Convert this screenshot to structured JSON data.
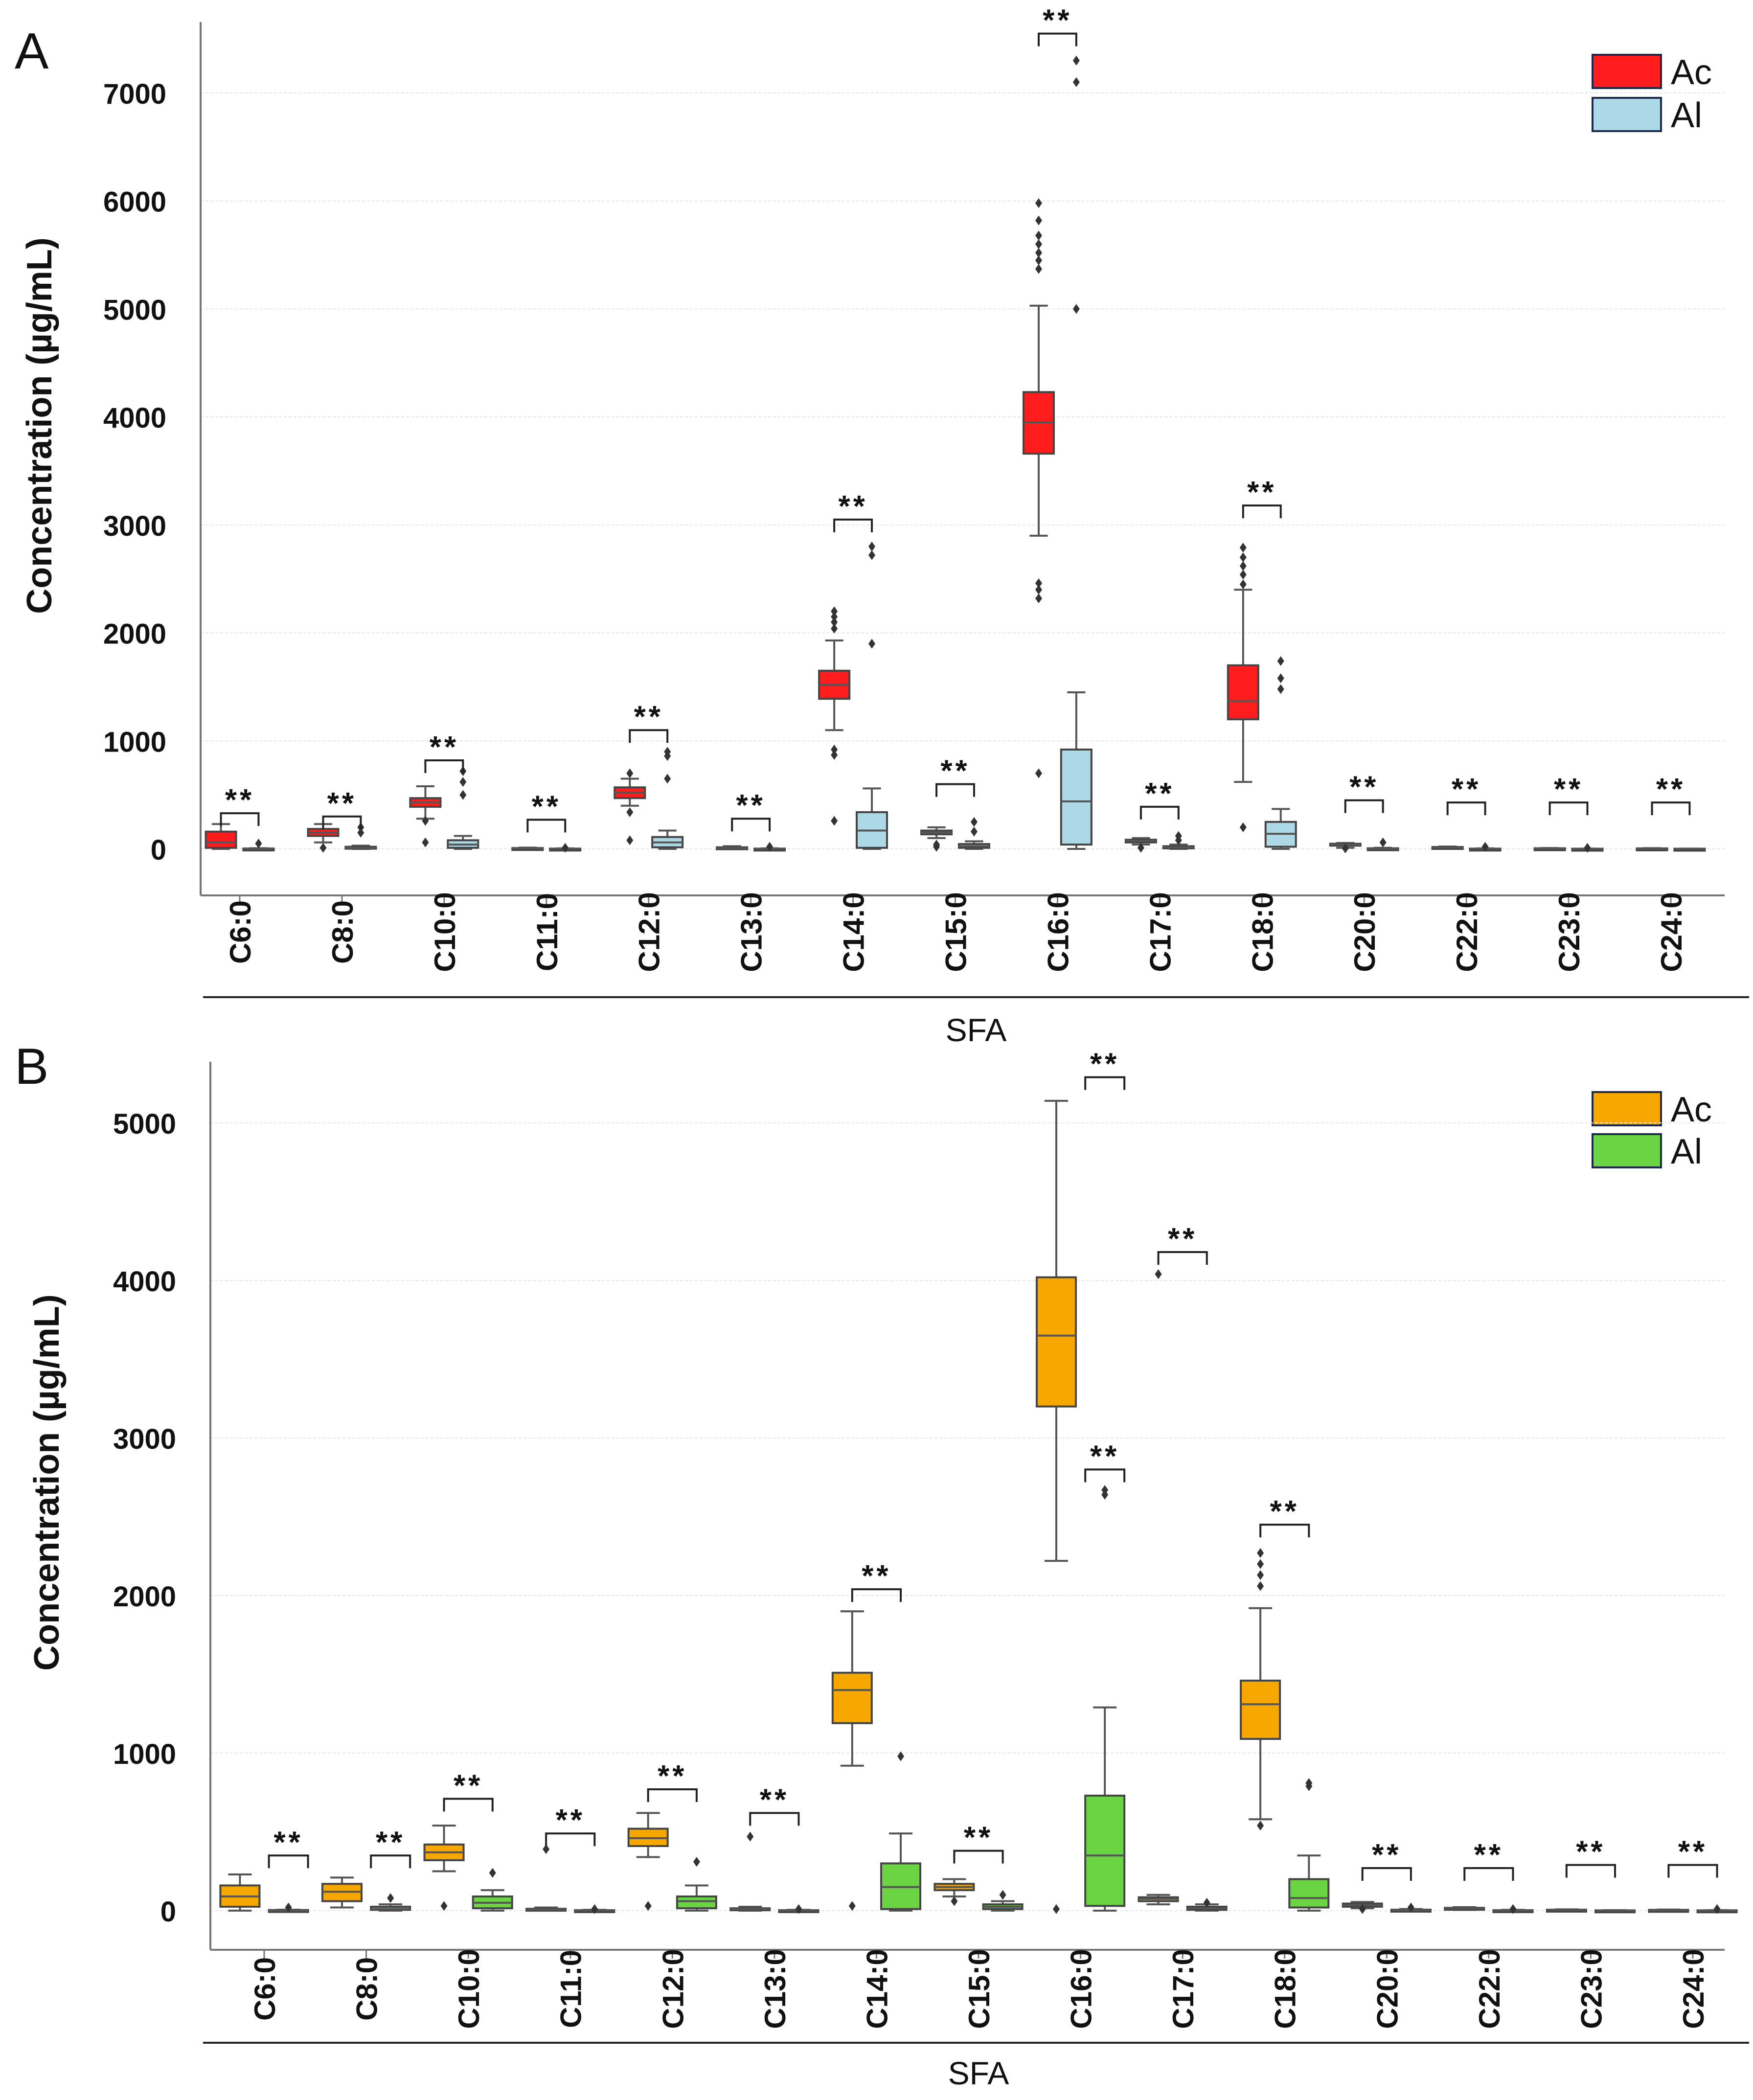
{
  "x_label": "SFA",
  "y_label": "Concentration (µg/mL)",
  "significance": "**",
  "chart_data": [
    {
      "panel": "A",
      "type": "boxplot",
      "title": "",
      "xlabel": "SFA",
      "ylabel": "Concentration (µg/mL)",
      "ylim": [
        -450,
        7800
      ],
      "yticks": [
        0,
        1000,
        2000,
        3000,
        4000,
        5000,
        6000,
        7000
      ],
      "grid": true,
      "legend_position": "top-right",
      "colors": {
        "Ac": "#ff1c1c",
        "Al": "#add8e6"
      },
      "categories": [
        "C6:0",
        "C8:0",
        "C10:0",
        "C11:0",
        "C12:0",
        "C13:0",
        "C14:0",
        "C15:0",
        "C16:0",
        "C17:0",
        "C18:0",
        "C20:0",
        "C22:0",
        "C23:0",
        "C24:0"
      ],
      "series": [
        {
          "name": "Ac",
          "boxes": [
            {
              "wlo": 0,
              "q1": 10,
              "med": 60,
              "q3": 160,
              "whi": 230,
              "fliers": []
            },
            {
              "wlo": 60,
              "q1": 120,
              "med": 150,
              "q3": 185,
              "whi": 230,
              "fliers": [
                10
              ]
            },
            {
              "wlo": 280,
              "q1": 390,
              "med": 430,
              "q3": 470,
              "whi": 580,
              "fliers": [
                60,
                260
              ]
            },
            {
              "wlo": 0,
              "q1": 2,
              "med": 5,
              "q3": 8,
              "whi": 12,
              "fliers": []
            },
            {
              "wlo": 400,
              "q1": 470,
              "med": 520,
              "q3": 570,
              "whi": 650,
              "fliers": [
                80,
                340,
                700
              ]
            },
            {
              "wlo": 0,
              "q1": 3,
              "med": 8,
              "q3": 15,
              "whi": 25,
              "fliers": []
            },
            {
              "wlo": 1100,
              "q1": 1390,
              "med": 1520,
              "q3": 1650,
              "whi": 1930,
              "fliers": [
                260,
                870,
                920,
                2040,
                2100,
                2150,
                2200
              ]
            },
            {
              "wlo": 100,
              "q1": 135,
              "med": 150,
              "q3": 170,
              "whi": 200,
              "fliers": [
                20,
                40
              ]
            },
            {
              "wlo": 2900,
              "q1": 3660,
              "med": 3950,
              "q3": 4230,
              "whi": 5030,
              "fliers": [
                700,
                2320,
                2400,
                2460,
                5370,
                5450,
                5520,
                5600,
                5680,
                5820,
                5980
              ]
            },
            {
              "wlo": 40,
              "q1": 60,
              "med": 75,
              "q3": 85,
              "whi": 100,
              "fliers": [
                10
              ]
            },
            {
              "wlo": 620,
              "q1": 1200,
              "med": 1370,
              "q3": 1700,
              "whi": 2400,
              "fliers": [
                200,
                2450,
                2540,
                2620,
                2700,
                2790
              ]
            },
            {
              "wlo": 10,
              "q1": 30,
              "med": 40,
              "q3": 48,
              "whi": 55,
              "fliers": [
                5
              ]
            },
            {
              "wlo": 2,
              "q1": 10,
              "med": 15,
              "q3": 18,
              "whi": 22,
              "fliers": []
            },
            {
              "wlo": 0,
              "q1": 2,
              "med": 4,
              "q3": 6,
              "whi": 8,
              "fliers": []
            },
            {
              "wlo": 0,
              "q1": 2,
              "med": 3,
              "q3": 5,
              "whi": 7,
              "fliers": []
            }
          ]
        },
        {
          "name": "Al",
          "boxes": [
            {
              "wlo": 0,
              "q1": 1,
              "med": 2,
              "q3": 4,
              "whi": 6,
              "fliers": [
                50
              ]
            },
            {
              "wlo": 0,
              "q1": 5,
              "med": 10,
              "q3": 20,
              "whi": 30,
              "fliers": [
                150,
                200
              ]
            },
            {
              "wlo": 0,
              "q1": 10,
              "med": 40,
              "q3": 80,
              "whi": 120,
              "fliers": [
                500,
                620,
                720
              ]
            },
            {
              "wlo": 0,
              "q1": 1,
              "med": 2,
              "q3": 3,
              "whi": 5,
              "fliers": [
                10
              ]
            },
            {
              "wlo": 0,
              "q1": 15,
              "med": 60,
              "q3": 110,
              "whi": 170,
              "fliers": [
                650,
                860,
                900
              ]
            },
            {
              "wlo": 0,
              "q1": 1,
              "med": 2,
              "q3": 3,
              "whi": 5,
              "fliers": [
                20
              ]
            },
            {
              "wlo": 0,
              "q1": 10,
              "med": 170,
              "q3": 340,
              "whi": 560,
              "fliers": [
                1900,
                2720,
                2800
              ]
            },
            {
              "wlo": 0,
              "q1": 10,
              "med": 25,
              "q3": 45,
              "whi": 70,
              "fliers": [
                160,
                250
              ]
            },
            {
              "wlo": 0,
              "q1": 40,
              "med": 440,
              "q3": 920,
              "whi": 1450,
              "fliers": [
                5000,
                7100,
                7300
              ]
            },
            {
              "wlo": 0,
              "q1": 5,
              "med": 15,
              "q3": 25,
              "whi": 40,
              "fliers": [
                80,
                120
              ]
            },
            {
              "wlo": 0,
              "q1": 20,
              "med": 140,
              "q3": 250,
              "whi": 370,
              "fliers": [
                1480,
                1580,
                1740
              ]
            },
            {
              "wlo": 0,
              "q1": 1,
              "med": 3,
              "q3": 6,
              "whi": 10,
              "fliers": [
                60
              ]
            },
            {
              "wlo": 0,
              "q1": 1,
              "med": 2,
              "q3": 3,
              "whi": 5,
              "fliers": [
                20
              ]
            },
            {
              "wlo": 0,
              "q1": 1,
              "med": 1,
              "q3": 2,
              "whi": 3,
              "fliers": [
                10
              ]
            },
            {
              "wlo": 0,
              "q1": 1,
              "med": 1,
              "q3": 2,
              "whi": 3,
              "fliers": []
            }
          ]
        }
      ],
      "annotations": [
        {
          "category": "C6:0",
          "text": "**",
          "y": 330
        },
        {
          "category": "C8:0",
          "text": "**",
          "y": 300
        },
        {
          "category": "C10:0",
          "text": "**",
          "y": 820
        },
        {
          "category": "C11:0",
          "text": "**",
          "y": 270
        },
        {
          "category": "C12:0",
          "text": "**",
          "y": 1100
        },
        {
          "category": "C13:0",
          "text": "**",
          "y": 280
        },
        {
          "category": "C14:0",
          "text": "**",
          "y": 3050
        },
        {
          "category": "C15:0",
          "text": "**",
          "y": 600
        },
        {
          "category": "C16:0",
          "text": "**",
          "y": 7550
        },
        {
          "category": "C17:0",
          "text": "**",
          "y": 390
        },
        {
          "category": "C18:0",
          "text": "**",
          "y": 3180
        },
        {
          "category": "C20:0",
          "text": "**",
          "y": 450
        },
        {
          "category": "C22:0",
          "text": "**",
          "y": 430
        },
        {
          "category": "C23:0",
          "text": "**",
          "y": 430
        },
        {
          "category": "C24:0",
          "text": "**",
          "y": 430
        }
      ]
    },
    {
      "panel": "B",
      "type": "boxplot",
      "title": "",
      "xlabel": "SFA",
      "ylabel": "Concentration (µg/mL)",
      "ylim": [
        -250,
        5400
      ],
      "yticks": [
        0,
        1000,
        2000,
        3000,
        4000,
        5000
      ],
      "grid": true,
      "legend_position": "top-right",
      "colors": {
        "Ac": "#f6a800",
        "Al": "#6bd443"
      },
      "categories": [
        "C6:0",
        "C8:0",
        "C10:0",
        "C11:0",
        "C12:0",
        "C13:0",
        "C14:0",
        "C15:0",
        "C16:0",
        "C17:0",
        "C18:0",
        "C20:0",
        "C22:0",
        "C23:0",
        "C24:0"
      ],
      "series": [
        {
          "name": "Ac",
          "boxes": [
            {
              "wlo": 0,
              "q1": 25,
              "med": 90,
              "q3": 160,
              "whi": 230,
              "fliers": []
            },
            {
              "wlo": 20,
              "q1": 60,
              "med": 120,
              "q3": 170,
              "whi": 210,
              "fliers": []
            },
            {
              "wlo": 250,
              "q1": 320,
              "med": 370,
              "q3": 420,
              "whi": 540,
              "fliers": [
                30
              ]
            },
            {
              "wlo": 0,
              "q1": 3,
              "med": 8,
              "q3": 12,
              "whi": 20,
              "fliers": [
                390
              ]
            },
            {
              "wlo": 340,
              "q1": 410,
              "med": 460,
              "q3": 520,
              "whi": 620,
              "fliers": [
                30
              ]
            },
            {
              "wlo": 0,
              "q1": 5,
              "med": 10,
              "q3": 15,
              "whi": 25,
              "fliers": [
                470
              ]
            },
            {
              "wlo": 920,
              "q1": 1190,
              "med": 1400,
              "q3": 1510,
              "whi": 1900,
              "fliers": [
                30
              ]
            },
            {
              "wlo": 90,
              "q1": 130,
              "med": 150,
              "q3": 170,
              "whi": 200,
              "fliers": [
                60
              ]
            },
            {
              "wlo": 2220,
              "q1": 3200,
              "med": 3650,
              "q3": 4020,
              "whi": 5140,
              "fliers": [
                10
              ]
            },
            {
              "wlo": 40,
              "q1": 60,
              "med": 75,
              "q3": 85,
              "whi": 100,
              "fliers": [
                4040
              ]
            },
            {
              "wlo": 580,
              "q1": 1090,
              "med": 1310,
              "q3": 1460,
              "whi": 1920,
              "fliers": [
                540,
                2060,
                2130,
                2200,
                2270
              ]
            },
            {
              "wlo": 15,
              "q1": 25,
              "med": 35,
              "q3": 45,
              "whi": 55,
              "fliers": [
                10
              ]
            },
            {
              "wlo": 5,
              "q1": 10,
              "med": 15,
              "q3": 18,
              "whi": 22,
              "fliers": []
            },
            {
              "wlo": 0,
              "q1": 2,
              "med": 4,
              "q3": 6,
              "whi": 8,
              "fliers": []
            },
            {
              "wlo": 0,
              "q1": 2,
              "med": 3,
              "q3": 5,
              "whi": 7,
              "fliers": []
            }
          ]
        },
        {
          "name": "Al",
          "boxes": [
            {
              "wlo": 0,
              "q1": 1,
              "med": 2,
              "q3": 4,
              "whi": 6,
              "fliers": [
                20
              ]
            },
            {
              "wlo": 0,
              "q1": 5,
              "med": 10,
              "q3": 25,
              "whi": 40,
              "fliers": [
                80
              ]
            },
            {
              "wlo": 0,
              "q1": 15,
              "med": 50,
              "q3": 90,
              "whi": 130,
              "fliers": [
                240
              ]
            },
            {
              "wlo": 0,
              "q1": 1,
              "med": 2,
              "q3": 3,
              "whi": 5,
              "fliers": [
                10
              ]
            },
            {
              "wlo": 0,
              "q1": 15,
              "med": 60,
              "q3": 90,
              "whi": 160,
              "fliers": [
                310
              ]
            },
            {
              "wlo": 0,
              "q1": 1,
              "med": 2,
              "q3": 3,
              "whi": 5,
              "fliers": [
                10
              ]
            },
            {
              "wlo": 0,
              "q1": 10,
              "med": 150,
              "q3": 300,
              "whi": 490,
              "fliers": [
                980
              ]
            },
            {
              "wlo": 0,
              "q1": 10,
              "med": 25,
              "q3": 40,
              "whi": 60,
              "fliers": [
                100
              ]
            },
            {
              "wlo": 0,
              "q1": 30,
              "med": 350,
              "q3": 730,
              "whi": 1290,
              "fliers": [
                2640,
                2670
              ]
            },
            {
              "wlo": 0,
              "q1": 5,
              "med": 15,
              "q3": 25,
              "whi": 40,
              "fliers": [
                50
              ]
            },
            {
              "wlo": 0,
              "q1": 20,
              "med": 80,
              "q3": 200,
              "whi": 350,
              "fliers": [
                790,
                810
              ]
            },
            {
              "wlo": 0,
              "q1": 1,
              "med": 3,
              "q3": 6,
              "whi": 10,
              "fliers": [
                20
              ]
            },
            {
              "wlo": 0,
              "q1": 1,
              "med": 2,
              "q3": 3,
              "whi": 5,
              "fliers": [
                10
              ]
            },
            {
              "wlo": 0,
              "q1": 1,
              "med": 1,
              "q3": 2,
              "whi": 3,
              "fliers": []
            },
            {
              "wlo": 0,
              "q1": 1,
              "med": 1,
              "q3": 2,
              "whi": 3,
              "fliers": [
                10
              ]
            }
          ]
        }
      ],
      "annotations": [
        {
          "category": "C6:0",
          "text": "**",
          "y": 350,
          "side": "Al"
        },
        {
          "category": "C8:0",
          "text": "**",
          "y": 350,
          "side": "Al"
        },
        {
          "category": "C10:0",
          "text": "**",
          "y": 710
        },
        {
          "category": "C11:0",
          "text": "**",
          "y": 490
        },
        {
          "category": "C12:0",
          "text": "**",
          "y": 770
        },
        {
          "category": "C13:0",
          "text": "**",
          "y": 620
        },
        {
          "category": "C14:0",
          "text": "**",
          "y": 2040
        },
        {
          "category": "C15:0",
          "text": "**",
          "y": 380
        },
        {
          "category": "C16:0",
          "text": "**",
          "y": 5290,
          "side": "Al"
        },
        {
          "category": "C16:0",
          "text": "**",
          "y": 2800,
          "side": "Al"
        },
        {
          "category": "C17:0",
          "text": "**",
          "y": 4180
        },
        {
          "category": "C18:0",
          "text": "**",
          "y": 2450
        },
        {
          "category": "C20:0",
          "text": "**",
          "y": 270
        },
        {
          "category": "C22:0",
          "text": "**",
          "y": 270
        },
        {
          "category": "C23:0",
          "text": "**",
          "y": 290
        },
        {
          "category": "C24:0",
          "text": "**",
          "y": 290
        }
      ]
    }
  ]
}
